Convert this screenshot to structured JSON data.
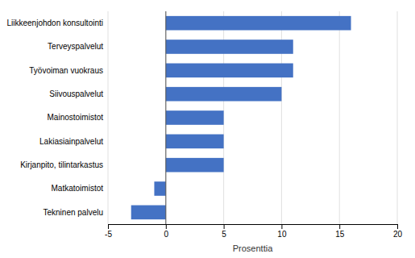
{
  "chart_data": {
    "type": "bar",
    "orientation": "horizontal",
    "categories": [
      "Tekninen palvelu",
      "Matkatoimistot",
      "Kirjanpito, tilintarkastus",
      "Lakiasiainpalvelut",
      "Mainostoimistot",
      "Siivouspalvelut",
      "Työvoiman vuokraus",
      "Terveyspalvelut",
      "Liikkeenjohdon konsultointi"
    ],
    "values": [
      -3,
      -1,
      5,
      5,
      5,
      10,
      11,
      11,
      16
    ],
    "color": "#4472c4",
    "xlabel": "Prosenttia",
    "xlim": [
      -5,
      20
    ],
    "xticks": [
      -5,
      0,
      5,
      10,
      15,
      20
    ],
    "grid": true
  }
}
